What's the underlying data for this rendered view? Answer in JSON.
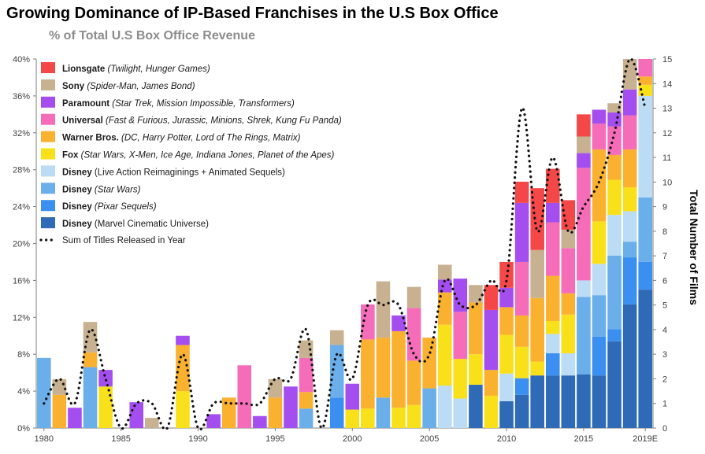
{
  "chart_data": {
    "type": "bar",
    "stacked": true,
    "title": "Growing Dominance of IP-Based Franchises in the U.S Box Office",
    "subtitle": "% of Total U.S Box Office Revenue",
    "y_left": {
      "min": 0,
      "max": 40,
      "ticks": [
        "0%",
        "4%",
        "8%",
        "12%",
        "16%",
        "20%",
        "24%",
        "28%",
        "32%",
        "36%",
        "40%"
      ],
      "tick_values": [
        0,
        4,
        8,
        12,
        16,
        20,
        24,
        28,
        32,
        36,
        40
      ]
    },
    "y_right": {
      "label": "Total Number of Films",
      "min": 0,
      "max": 15,
      "ticks": [
        "0",
        "1",
        "2",
        "3",
        "4",
        "5",
        "6",
        "7",
        "8",
        "9",
        "10",
        "11",
        "12",
        "13",
        "14",
        "15"
      ]
    },
    "x_tick_labels": [
      {
        "year": 1980,
        "label": "1980"
      },
      {
        "year": 1985,
        "label": "1985"
      },
      {
        "year": 1990,
        "label": "1990"
      },
      {
        "year": 1995,
        "label": "1995"
      },
      {
        "year": 2000,
        "label": "2000"
      },
      {
        "year": 2005,
        "label": "2005"
      },
      {
        "year": 2010,
        "label": "2010"
      },
      {
        "year": 2015,
        "label": "2015"
      },
      {
        "year": 2019,
        "label": "2019E"
      }
    ],
    "legend_position": "top-left",
    "series": [
      {
        "key": "mcu",
        "studio": "Disney",
        "note": "Marvel Cinematic Universe",
        "italic": false,
        "color": "#2e6ab5"
      },
      {
        "key": "pixar",
        "studio": "Disney",
        "note": "Pixar Sequels",
        "italic": true,
        "color": "#3b8ff0"
      },
      {
        "key": "starwars",
        "studio": "Disney",
        "note": "Star Wars",
        "italic": true,
        "color": "#6aaeea"
      },
      {
        "key": "disneylive",
        "studio": "Disney",
        "note": "Live Action Reimaginings + Animated Sequels",
        "italic": false,
        "color": "#bcdcf5"
      },
      {
        "key": "fox",
        "studio": "Fox",
        "note": "Star Wars, X-Men, Ice Age, Indiana Jones, Planet of the Apes",
        "italic": true,
        "color": "#f8e01a"
      },
      {
        "key": "wb",
        "studio": "Warner Bros.",
        "note": "DC, Harry Potter, Lord of The Rings, Matrix",
        "italic": true,
        "color": "#fbb130"
      },
      {
        "key": "universal",
        "studio": "Universal",
        "note": "Fast & Furious, Jurassic, Minions, Shrek, Kung Fu Panda",
        "italic": true,
        "color": "#f56db8"
      },
      {
        "key": "paramount",
        "studio": "Paramount",
        "note": "Star Trek, Mission Impossible, Transformers",
        "italic": true,
        "color": "#a44ef0"
      },
      {
        "key": "sony",
        "studio": "Sony",
        "note": "Spider-Man, James Bond",
        "italic": true,
        "color": "#c8b191"
      },
      {
        "key": "lionsgate",
        "studio": "Lionsgate",
        "note": "Twilight, Hunger Games",
        "italic": true,
        "color": "#f44848"
      }
    ],
    "line_legend": "Sum of Titles Released in Year",
    "bars": [
      {
        "year": 1980,
        "segments": [
          [
            "starwars",
            7.6
          ]
        ]
      },
      {
        "year": 1981,
        "segments": [
          [
            "wb",
            3.6
          ],
          [
            "sony",
            1.7
          ]
        ]
      },
      {
        "year": 1982,
        "segments": [
          [
            "paramount",
            2.2
          ]
        ]
      },
      {
        "year": 1983,
        "segments": [
          [
            "starwars",
            6.6
          ],
          [
            "wb",
            1.6
          ],
          [
            "sony",
            3.3
          ]
        ]
      },
      {
        "year": 1984,
        "segments": [
          [
            "fox",
            4.5
          ],
          [
            "paramount",
            1.8
          ]
        ]
      },
      {
        "year": 1985,
        "segments": []
      },
      {
        "year": 1986,
        "segments": [
          [
            "paramount",
            2.8
          ]
        ]
      },
      {
        "year": 1987,
        "segments": [
          [
            "sony",
            1.1
          ]
        ]
      },
      {
        "year": 1988,
        "segments": []
      },
      {
        "year": 1989,
        "segments": [
          [
            "fox",
            4.0
          ],
          [
            "wb",
            5.0
          ],
          [
            "paramount",
            1.0
          ]
        ]
      },
      {
        "year": 1990,
        "segments": []
      },
      {
        "year": 1991,
        "segments": [
          [
            "paramount",
            1.5
          ]
        ]
      },
      {
        "year": 1992,
        "segments": [
          [
            "wb",
            3.3
          ]
        ]
      },
      {
        "year": 1993,
        "segments": [
          [
            "universal",
            6.8
          ]
        ]
      },
      {
        "year": 1994,
        "segments": [
          [
            "paramount",
            1.3
          ]
        ]
      },
      {
        "year": 1995,
        "segments": [
          [
            "wb",
            3.3
          ],
          [
            "sony",
            2.0
          ]
        ]
      },
      {
        "year": 1996,
        "segments": [
          [
            "paramount",
            4.5
          ]
        ]
      },
      {
        "year": 1997,
        "segments": [
          [
            "starwars",
            2.1
          ],
          [
            "wb",
            1.8
          ],
          [
            "universal",
            3.7
          ],
          [
            "sony",
            1.9
          ]
        ]
      },
      {
        "year": 1998,
        "segments": []
      },
      {
        "year": 1999,
        "segments": [
          [
            "pixar",
            3.3
          ],
          [
            "starwars",
            5.7
          ],
          [
            "sony",
            1.6
          ]
        ]
      },
      {
        "year": 2000,
        "segments": [
          [
            "fox",
            2.0
          ],
          [
            "paramount",
            2.8
          ]
        ]
      },
      {
        "year": 2001,
        "segments": [
          [
            "fox",
            2.1
          ],
          [
            "wb",
            7.5
          ],
          [
            "universal",
            3.8
          ]
        ]
      },
      {
        "year": 2002,
        "segments": [
          [
            "starwars",
            3.3
          ],
          [
            "wb",
            6.5
          ],
          [
            "sony",
            6.1
          ]
        ]
      },
      {
        "year": 2003,
        "segments": [
          [
            "fox",
            2.2
          ],
          [
            "wb",
            8.3
          ],
          [
            "paramount",
            1.7
          ]
        ]
      },
      {
        "year": 2004,
        "segments": [
          [
            "fox",
            2.5
          ],
          [
            "wb",
            4.8
          ],
          [
            "universal",
            5.7
          ],
          [
            "sony",
            2.3
          ]
        ]
      },
      {
        "year": 2005,
        "segments": [
          [
            "starwars",
            4.3
          ],
          [
            "wb",
            5.5
          ]
        ]
      },
      {
        "year": 2006,
        "segments": [
          [
            "disneylive",
            4.6
          ],
          [
            "fox",
            6.6
          ],
          [
            "wb",
            3.5
          ],
          [
            "paramount",
            1.4
          ],
          [
            "sony",
            1.6
          ]
        ]
      },
      {
        "year": 2007,
        "segments": [
          [
            "disneylive",
            3.2
          ],
          [
            "fox",
            4.3
          ],
          [
            "universal",
            5.1
          ],
          [
            "paramount",
            3.6
          ]
        ]
      },
      {
        "year": 2008,
        "segments": [
          [
            "mcu",
            4.7
          ],
          [
            "fox",
            3.3
          ],
          [
            "wb",
            5.6
          ],
          [
            "sony",
            1.9
          ]
        ]
      },
      {
        "year": 2009,
        "segments": [
          [
            "fox",
            3.5
          ],
          [
            "wb",
            2.8
          ],
          [
            "paramount",
            6.5
          ],
          [
            "lionsgate",
            2.7
          ]
        ]
      },
      {
        "year": 2010,
        "segments": [
          [
            "mcu",
            2.9
          ],
          [
            "disneylive",
            3.0
          ],
          [
            "fox",
            4.2
          ],
          [
            "wb",
            3.0
          ],
          [
            "paramount",
            2.1
          ],
          [
            "lionsgate",
            2.8
          ]
        ]
      },
      {
        "year": 2011,
        "segments": [
          [
            "mcu",
            3.6
          ],
          [
            "pixar",
            1.8
          ],
          [
            "fox",
            3.4
          ],
          [
            "wb",
            3.4
          ],
          [
            "universal",
            5.8
          ],
          [
            "paramount",
            6.4
          ],
          [
            "lionsgate",
            2.3
          ]
        ]
      },
      {
        "year": 2012,
        "segments": [
          [
            "mcu",
            5.7
          ],
          [
            "fox",
            1.5
          ],
          [
            "wb",
            6.9
          ],
          [
            "sony",
            5.2
          ],
          [
            "lionsgate",
            6.7
          ]
        ]
      },
      {
        "year": 2013,
        "segments": [
          [
            "mcu",
            5.7
          ],
          [
            "pixar",
            2.4
          ],
          [
            "disneylive",
            2.1
          ],
          [
            "fox",
            1.4
          ],
          [
            "wb",
            4.9
          ],
          [
            "universal",
            5.8
          ],
          [
            "paramount",
            2.1
          ],
          [
            "lionsgate",
            3.7
          ]
        ]
      },
      {
        "year": 2014,
        "segments": [
          [
            "mcu",
            5.7
          ],
          [
            "disneylive",
            2.4
          ],
          [
            "fox",
            4.2
          ],
          [
            "wb",
            2.3
          ],
          [
            "universal",
            4.9
          ],
          [
            "sony",
            2.0
          ],
          [
            "lionsgate",
            3.2
          ]
        ]
      },
      {
        "year": 2015,
        "segments": [
          [
            "mcu",
            5.8
          ],
          [
            "starwars",
            8.4
          ],
          [
            "disneylive",
            1.8
          ],
          [
            "universal",
            12.2
          ],
          [
            "paramount",
            1.6
          ],
          [
            "sony",
            1.8
          ],
          [
            "lionsgate",
            2.4
          ]
        ]
      },
      {
        "year": 2016,
        "segments": [
          [
            "mcu",
            5.7
          ],
          [
            "pixar",
            4.2
          ],
          [
            "starwars",
            4.5
          ],
          [
            "disneylive",
            3.4
          ],
          [
            "fox",
            4.6
          ],
          [
            "wb",
            7.8
          ],
          [
            "universal",
            2.8
          ],
          [
            "paramount",
            1.5
          ]
        ]
      },
      {
        "year": 2017,
        "segments": [
          [
            "mcu",
            9.4
          ],
          [
            "pixar",
            1.3
          ],
          [
            "starwars",
            8.0
          ],
          [
            "disneylive",
            4.4
          ],
          [
            "fox",
            3.8
          ],
          [
            "wb",
            2.7
          ],
          [
            "universal",
            3.1
          ],
          [
            "paramount",
            1.5
          ],
          [
            "sony",
            1.0
          ]
        ]
      },
      {
        "year": 2018,
        "segments": [
          [
            "mcu",
            13.4
          ],
          [
            "pixar",
            5.1
          ],
          [
            "starwars",
            1.7
          ],
          [
            "disneylive",
            3.3
          ],
          [
            "fox",
            2.6
          ],
          [
            "wb",
            4.1
          ],
          [
            "universal",
            3.7
          ],
          [
            "paramount",
            2.8
          ],
          [
            "sony",
            3.3
          ]
        ]
      },
      {
        "year": 2019,
        "segments": [
          [
            "mcu",
            15.0
          ],
          [
            "pixar",
            3.0
          ],
          [
            "starwars",
            7.0
          ],
          [
            "disneylive",
            11.0
          ],
          [
            "fox",
            1.2
          ],
          [
            "wb",
            0.9
          ],
          [
            "universal",
            1.9
          ]
        ]
      }
    ],
    "titles_line": {
      "years": [
        1980,
        1981,
        1982,
        1983,
        1984,
        1985,
        1986,
        1987,
        1988,
        1989,
        1990,
        1991,
        1992,
        1993,
        1994,
        1995,
        1996,
        1997,
        1998,
        1999,
        2000,
        2001,
        2002,
        2003,
        2004,
        2005,
        2006,
        2007,
        2008,
        2009,
        2010,
        2011,
        2012,
        2013,
        2014,
        2015,
        2016,
        2017,
        2018,
        2019
      ],
      "values": [
        1,
        2,
        1,
        4,
        2,
        0,
        1,
        1,
        0,
        3,
        0,
        1,
        1,
        1,
        1,
        2,
        2,
        4,
        0,
        3,
        2,
        5,
        5,
        5,
        3,
        3,
        6,
        5,
        5,
        6,
        6,
        13,
        8,
        11,
        8,
        9,
        10,
        12,
        15,
        13
      ]
    }
  }
}
